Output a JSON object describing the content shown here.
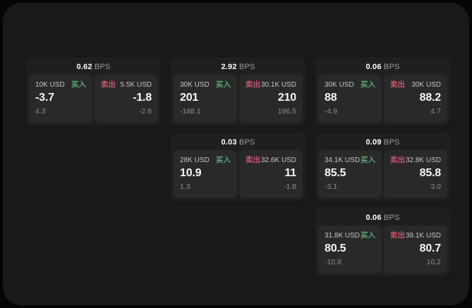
{
  "labels": {
    "bps_unit": "BPS",
    "buy": "买入",
    "sell": "卖出"
  },
  "colors": {
    "page_bg": "#050505",
    "window_bg": "#191919",
    "card_bg": "#1f1f1f",
    "tile_bg": "#29292a",
    "buy_green": "#55aa6e",
    "sell_red": "#c4566a"
  },
  "cards": [
    {
      "bps": "0.62",
      "buy": {
        "notional": "10K USD",
        "price": "-3.7",
        "delta": "4.3"
      },
      "sell": {
        "notional": "5.5K USD",
        "price": "-1.8",
        "delta": "-2.6"
      }
    },
    {
      "bps": "2.92",
      "buy": {
        "notional": "30K USD",
        "price": "201",
        "delta": "-188.1"
      },
      "sell": {
        "notional": "30.1K USD",
        "price": "210",
        "delta": "196.5"
      }
    },
    {
      "bps": "0.06",
      "buy": {
        "notional": "30K USD",
        "price": "88",
        "delta": "-4.9"
      },
      "sell": {
        "notional": "30K USD",
        "price": "88.2",
        "delta": "4.7"
      }
    },
    {
      "bps": "0.03",
      "buy": {
        "notional": "28K USD",
        "price": "10.9",
        "delta": "1.3"
      },
      "sell": {
        "notional": "32.6K USD",
        "price": "11",
        "delta": "-1.8"
      }
    },
    {
      "bps": "0.09",
      "buy": {
        "notional": "34.1K USD",
        "price": "85.5",
        "delta": "-3.1"
      },
      "sell": {
        "notional": "32.8K USD",
        "price": "85.8",
        "delta": "3.0"
      }
    },
    {
      "bps": "0.06",
      "buy": {
        "notional": "31.8K USD",
        "price": "80.5",
        "delta": "-10.8"
      },
      "sell": {
        "notional": "39.1K USD",
        "price": "80.7",
        "delta": "10.2"
      }
    }
  ]
}
